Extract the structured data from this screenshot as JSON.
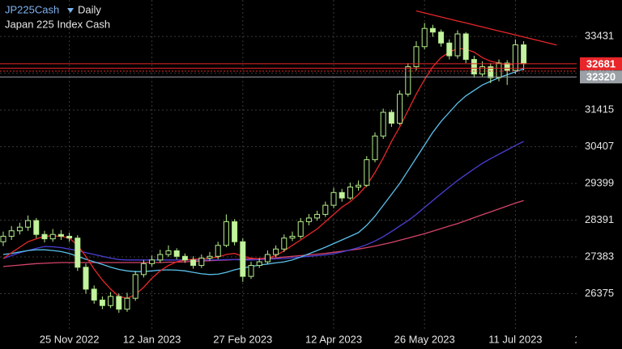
{
  "chart_data": {
    "type": "candlestick",
    "title": "JP225Cash",
    "timeframe": "Daily",
    "subtitle": "Japan 225 Index Cash",
    "categories": [
      null,
      null,
      null,
      null,
      null,
      null,
      null,
      null,
      "25 Nov 2022",
      null,
      null,
      null,
      null,
      null,
      null,
      null,
      null,
      null,
      "12 Jan 2023",
      null,
      null,
      null,
      null,
      null,
      null,
      null,
      null,
      null,
      null,
      "27 Feb 2023",
      null,
      null,
      null,
      null,
      null,
      null,
      null,
      null,
      null,
      null,
      "12 Apr 2023",
      null,
      null,
      null,
      null,
      null,
      null,
      null,
      null,
      null,
      null,
      "26 May 2023",
      null,
      null,
      null,
      null,
      null,
      null,
      null,
      null,
      null,
      null,
      "11 Jul 2023",
      null,
      null,
      null,
      null,
      null,
      null,
      null,
      null,
      null,
      "18 Aug 20"
    ],
    "open": [
      27800,
      27950,
      28100,
      28200,
      28380,
      28000,
      27880,
      28000,
      27950,
      27900,
      27100,
      26500,
      26200,
      26050,
      26300,
      25950,
      26250,
      26900,
      27200,
      27300,
      27450,
      27550,
      27400,
      27300,
      27150,
      27350,
      27400,
      27700,
      28350,
      27800,
      26850,
      27150,
      27250,
      27450,
      27600,
      27900,
      27950,
      28350,
      28450,
      28550,
      28800,
      29150,
      29000,
      29300,
      29350,
      30050,
      30700,
      31350,
      31050,
      31850,
      32600,
      33150,
      33650,
      33550,
      33250,
      32900,
      33500,
      32800,
      32400,
      32600,
      32300,
      32700,
      32500,
      33200,
      null,
      null,
      null,
      null,
      null,
      null,
      null,
      null,
      null
    ],
    "high": [
      28080,
      28230,
      28320,
      28520,
      28450,
      28100,
      28150,
      28120,
      28050,
      27980,
      27200,
      26600,
      26300,
      26420,
      26380,
      26400,
      27000,
      27300,
      27420,
      27580,
      27700,
      27620,
      27480,
      27400,
      27450,
      27520,
      27800,
      28550,
      28420,
      27900,
      27250,
      27350,
      27560,
      27700,
      28000,
      28080,
      28450,
      28560,
      28650,
      28900,
      29280,
      29250,
      29420,
      29480,
      30150,
      30800,
      31450,
      31420,
      31950,
      32700,
      33300,
      33800,
      33750,
      33620,
      33350,
      33600,
      33550,
      32900,
      32750,
      32700,
      32800,
      32780,
      33350,
      33300,
      null,
      null,
      null,
      null,
      null,
      null,
      null,
      null,
      null
    ],
    "low": [
      27680,
      27850,
      28000,
      28100,
      27900,
      27780,
      27800,
      27850,
      27800,
      27000,
      26380,
      26100,
      25950,
      25980,
      25850,
      25880,
      26180,
      26820,
      27120,
      27220,
      27380,
      27320,
      27220,
      27060,
      27080,
      27280,
      27320,
      27650,
      27700,
      26700,
      26780,
      27080,
      27180,
      27380,
      27520,
      27820,
      27880,
      28250,
      28380,
      28480,
      28720,
      28900,
      28950,
      29200,
      29300,
      29980,
      30620,
      30950,
      31000,
      31780,
      32500,
      33080,
      33420,
      33150,
      32800,
      32820,
      32700,
      32300,
      32330,
      32150,
      32200,
      32100,
      32400,
      32500,
      null,
      null,
      null,
      null,
      null,
      null,
      null,
      null,
      null
    ],
    "close": [
      27950,
      28100,
      28200,
      28380,
      28000,
      27880,
      28000,
      27950,
      27900,
      27100,
      26500,
      26200,
      26050,
      26300,
      25950,
      26250,
      26900,
      27200,
      27300,
      27450,
      27550,
      27400,
      27300,
      27150,
      27350,
      27400,
      27700,
      28350,
      27800,
      26850,
      27150,
      27250,
      27450,
      27600,
      27900,
      27950,
      28350,
      28450,
      28550,
      28800,
      29150,
      29000,
      29300,
      29350,
      30050,
      30700,
      31350,
      31050,
      31850,
      32600,
      33150,
      33650,
      33550,
      33250,
      32900,
      33500,
      32800,
      32400,
      32600,
      32300,
      32700,
      32500,
      33200,
      32681,
      null,
      null,
      null,
      null,
      null,
      null,
      null,
      null,
      null
    ],
    "up_color": "#000000",
    "down_color": "#c4f2a0",
    "candle_outline": "#b4ee8a",
    "series": [
      {
        "color": "#d6446a",
        "values": [
          27120,
          27140,
          27160,
          27180,
          27200,
          27210,
          27220,
          27230,
          27230,
          27230,
          27230,
          27230,
          27230,
          27230,
          27230,
          27230,
          27230,
          27230,
          27230,
          27230,
          27240,
          27240,
          27250,
          27260,
          27270,
          27280,
          27290,
          27300,
          27310,
          27320,
          27330,
          27340,
          27350,
          27360,
          27380,
          27400,
          27420,
          27440,
          27460,
          27480,
          27510,
          27540,
          27570,
          27600,
          27640,
          27680,
          27730,
          27780,
          27840,
          27900,
          27960,
          28020,
          28090,
          28160,
          28230,
          28300,
          28380,
          28460,
          28540,
          28620,
          28700,
          28780,
          28860,
          28930,
          null,
          null,
          null,
          null,
          null,
          null,
          null,
          null,
          null
        ]
      },
      {
        "color": "#4b3fd6",
        "values": [
          27340,
          27420,
          27500,
          27560,
          27620,
          27670,
          27660,
          27640,
          27600,
          27560,
          27500,
          27450,
          27400,
          27350,
          27310,
          27300,
          27300,
          27300,
          27300,
          27300,
          27300,
          27300,
          27300,
          27300,
          27300,
          27300,
          27300,
          27310,
          27310,
          27300,
          27300,
          27310,
          27320,
          27330,
          27340,
          27360,
          27380,
          27400,
          27420,
          27440,
          27470,
          27520,
          27580,
          27640,
          27720,
          27820,
          27940,
          28080,
          28230,
          28380,
          28550,
          28740,
          28930,
          29120,
          29300,
          29480,
          29640,
          29800,
          29950,
          30080,
          30200,
          30320,
          30440,
          30550,
          null,
          null,
          null,
          null,
          null,
          null,
          null,
          null,
          null
        ]
      },
      {
        "color": "#5bc0eb",
        "values": [
          27450,
          27480,
          27520,
          27560,
          27580,
          27580,
          27560,
          27530,
          27480,
          27400,
          27320,
          27250,
          27180,
          27100,
          27040,
          27000,
          26980,
          26980,
          27000,
          27020,
          27030,
          27020,
          27000,
          26960,
          26920,
          26900,
          26910,
          26960,
          27030,
          27080,
          27120,
          27160,
          27190,
          27220,
          27250,
          27300,
          27380,
          27470,
          27560,
          27650,
          27750,
          27850,
          27950,
          28050,
          28250,
          28500,
          28800,
          29100,
          29400,
          29750,
          30100,
          30450,
          30800,
          31100,
          31350,
          31600,
          31800,
          31950,
          32100,
          32200,
          32300,
          32380,
          32460,
          32540,
          null,
          null,
          null,
          null,
          null,
          null,
          null,
          null,
          null
        ]
      },
      {
        "color": "#e8262a",
        "values": [
          27340,
          27500,
          27650,
          27800,
          27880,
          27950,
          27960,
          27950,
          27900,
          27700,
          27400,
          27050,
          26750,
          26500,
          26300,
          26250,
          26350,
          26550,
          26800,
          27000,
          27150,
          27250,
          27300,
          27320,
          27330,
          27350,
          27380,
          27450,
          27480,
          27400,
          27350,
          27330,
          27350,
          27420,
          27550,
          27700,
          27850,
          28000,
          28150,
          28350,
          28550,
          28750,
          28900,
          29100,
          29350,
          29700,
          30100,
          30550,
          30950,
          31400,
          31850,
          32250,
          32600,
          32850,
          33000,
          33100,
          33080,
          33000,
          32850,
          32750,
          32700,
          32650,
          32680,
          32700,
          null,
          null,
          null,
          null,
          null,
          null,
          null,
          null,
          null
        ]
      }
    ],
    "trendline": {
      "color": "#e8262a",
      "values": [
        null,
        null,
        null,
        null,
        null,
        null,
        null,
        null,
        null,
        null,
        null,
        null,
        null,
        null,
        null,
        null,
        null,
        null,
        null,
        null,
        null,
        null,
        null,
        null,
        null,
        null,
        null,
        null,
        null,
        null,
        null,
        null,
        null,
        null,
        null,
        null,
        null,
        null,
        null,
        null,
        null,
        null,
        null,
        null,
        null,
        null,
        null,
        null,
        null,
        null,
        34130,
        34075,
        34020,
        33965,
        33910,
        33855,
        33800,
        33745,
        33690,
        33635,
        33580,
        33525,
        33470,
        33415,
        33360,
        33305,
        33250,
        33195,
        null,
        null,
        null,
        null,
        null
      ]
    },
    "levels": [
      {
        "value": 32560,
        "color": "#e8262a",
        "style": "solid"
      },
      {
        "value": 32480,
        "color": "#e8262a",
        "style": "dotted"
      }
    ],
    "price_lines": [
      {
        "value": 32320,
        "color": "#9aa0a6"
      },
      {
        "value": 32681,
        "color": "#e8262a"
      }
    ],
    "ylim": [
      25390,
      34430
    ],
    "yticks": [
      26375,
      27383,
      28391,
      29399,
      30407,
      31415,
      32423,
      33431
    ],
    "grid": true
  }
}
